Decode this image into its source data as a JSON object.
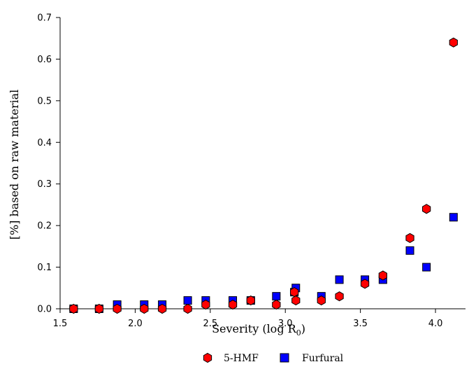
{
  "chart_data": {
    "type": "scatter",
    "xlabel": "Severity (log R",
    "xlabel_subscript": "0",
    "xlabel_suffix": ")",
    "ylabel": "[%] based on raw material",
    "xlim": [
      1.5,
      4.2
    ],
    "ylim": [
      0.0,
      0.7
    ],
    "x_ticks": [
      "1.5",
      "2.0",
      "2.5",
      "3.0",
      "3.5",
      "4.0"
    ],
    "y_ticks": [
      "0.0",
      "0.1",
      "0.2",
      "0.3",
      "0.4",
      "0.5",
      "0.6",
      "0.7"
    ],
    "grid": false,
    "legend_position": "bottom",
    "series": [
      {
        "name": "5-HMF",
        "marker": "hexagon",
        "color": "#ff0000",
        "points": [
          [
            1.59,
            0.0
          ],
          [
            1.76,
            0.0
          ],
          [
            1.88,
            0.0
          ],
          [
            2.06,
            0.0
          ],
          [
            2.18,
            0.0
          ],
          [
            2.35,
            0.0
          ],
          [
            2.47,
            0.01
          ],
          [
            2.65,
            0.01
          ],
          [
            2.77,
            0.02
          ],
          [
            2.94,
            0.01
          ],
          [
            3.06,
            0.04
          ],
          [
            3.07,
            0.02
          ],
          [
            3.24,
            0.02
          ],
          [
            3.36,
            0.03
          ],
          [
            3.53,
            0.06
          ],
          [
            3.65,
            0.08
          ],
          [
            3.83,
            0.17
          ],
          [
            3.94,
            0.24
          ],
          [
            4.12,
            0.64
          ]
        ]
      },
      {
        "name": "Furfural",
        "marker": "square",
        "color": "#0000ff",
        "points": [
          [
            1.59,
            0.0
          ],
          [
            1.76,
            0.0
          ],
          [
            1.88,
            0.01
          ],
          [
            2.06,
            0.01
          ],
          [
            2.18,
            0.01
          ],
          [
            2.35,
            0.02
          ],
          [
            2.47,
            0.02
          ],
          [
            2.65,
            0.02
          ],
          [
            2.77,
            0.02
          ],
          [
            2.94,
            0.03
          ],
          [
            3.06,
            0.04
          ],
          [
            3.07,
            0.05
          ],
          [
            3.24,
            0.03
          ],
          [
            3.36,
            0.07
          ],
          [
            3.53,
            0.07
          ],
          [
            3.65,
            0.07
          ],
          [
            3.83,
            0.14
          ],
          [
            3.94,
            0.1
          ],
          [
            4.12,
            0.22
          ]
        ]
      }
    ]
  }
}
